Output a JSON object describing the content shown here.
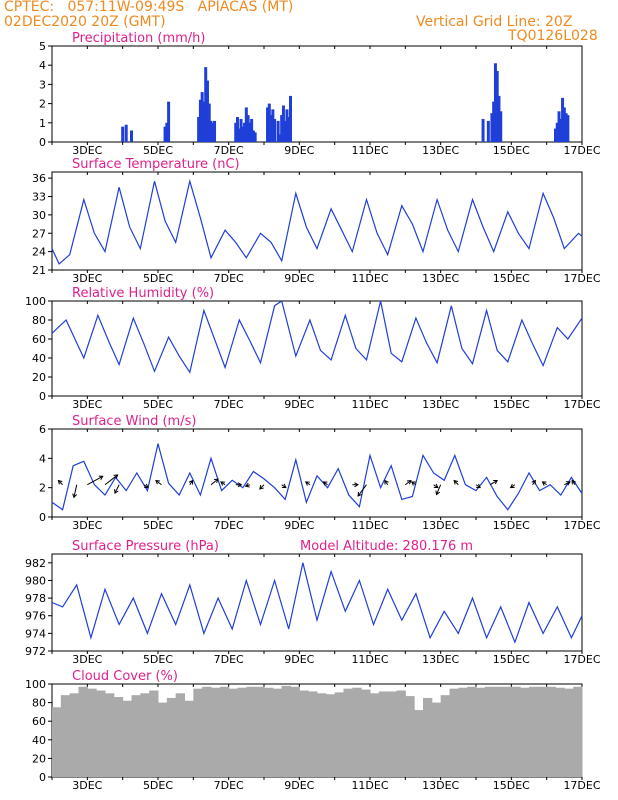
{
  "header": {
    "line1": "CPTEC:   057:11W-09:49S   APIACAS (MT)",
    "line2": "02DEC2020 20Z (GMT)",
    "vgrid": "Vertical Grid Line: 20Z",
    "code": "TQ0126L028"
  },
  "colors": {
    "header": "#ee8a1f",
    "title": "#e0208c",
    "series": "#1f3fd8",
    "cloud": "#aaaaaa"
  },
  "chart_data": [
    {
      "type": "bar",
      "title": "Precipitation (mm/h)",
      "ylim": [
        0,
        5
      ],
      "yticks": [
        0,
        1,
        2,
        3,
        4,
        5
      ],
      "xticks": [
        "3DEC",
        "5DEC",
        "7DEC",
        "9DEC",
        "11DEC",
        "13DEC",
        "15DEC",
        "17DEC"
      ],
      "x": [
        4.0,
        4.1,
        4.25,
        5.2,
        5.25,
        5.3,
        6.15,
        6.2,
        6.25,
        6.3,
        6.35,
        6.4,
        6.45,
        6.5,
        6.55,
        6.6,
        7.2,
        7.25,
        7.3,
        7.35,
        7.4,
        7.45,
        7.5,
        7.55,
        7.6,
        7.65,
        7.7,
        7.75,
        8.1,
        8.15,
        8.2,
        8.25,
        8.3,
        8.4,
        8.45,
        8.5,
        8.55,
        8.6,
        8.65,
        8.7,
        8.75,
        14.2,
        14.35,
        14.45,
        14.5,
        14.55,
        14.6,
        14.65,
        14.7,
        16.25,
        16.3,
        16.35,
        16.4,
        16.45,
        16.5,
        16.55,
        16.6
      ],
      "values": [
        0.8,
        0.9,
        0.6,
        0.8,
        1.0,
        2.1,
        1.3,
        2.2,
        2.6,
        2.1,
        3.9,
        3.2,
        2.0,
        1.1,
        1.0,
        1.1,
        1.0,
        1.3,
        0.7,
        1.2,
        0.8,
        1.0,
        1.8,
        1.4,
        1.0,
        1.2,
        0.6,
        0.5,
        1.8,
        2.0,
        1.4,
        1.7,
        1.2,
        1.1,
        0.4,
        1.4,
        1.9,
        1.1,
        1.7,
        1.3,
        2.4,
        1.2,
        1.1,
        1.5,
        2.1,
        4.1,
        3.7,
        2.4,
        1.6,
        0.7,
        1.0,
        1.6,
        1.2,
        2.3,
        1.8,
        1.5,
        1.4
      ]
    },
    {
      "type": "line",
      "title": "Surface Temperature (nC)",
      "ylim": [
        21,
        37
      ],
      "yticks": [
        21,
        24,
        27,
        30,
        33,
        36
      ],
      "xticks": [
        "3DEC",
        "5DEC",
        "7DEC",
        "9DEC",
        "11DEC",
        "13DEC",
        "15DEC",
        "17DEC"
      ],
      "x": [
        2.0,
        2.2,
        2.5,
        2.9,
        3.2,
        3.5,
        3.9,
        4.2,
        4.5,
        4.9,
        5.2,
        5.5,
        5.9,
        6.2,
        6.5,
        6.9,
        7.2,
        7.5,
        7.9,
        8.2,
        8.5,
        8.9,
        9.2,
        9.5,
        9.9,
        10.2,
        10.5,
        10.9,
        11.2,
        11.5,
        11.9,
        12.2,
        12.5,
        12.9,
        13.2,
        13.5,
        13.9,
        14.2,
        14.5,
        14.9,
        15.2,
        15.5,
        15.9,
        16.2,
        16.5,
        16.9,
        17.0
      ],
      "values": [
        24.5,
        22.0,
        23.5,
        32.5,
        27.0,
        24.0,
        34.5,
        28.0,
        24.5,
        35.5,
        29.0,
        25.5,
        35.5,
        29.5,
        23.0,
        27.5,
        25.5,
        23.0,
        27.0,
        25.5,
        22.5,
        33.5,
        28.0,
        24.5,
        31.0,
        27.5,
        24.0,
        32.5,
        27.0,
        23.5,
        31.5,
        28.5,
        24.0,
        32.5,
        27.5,
        24.0,
        32.5,
        28.0,
        24.0,
        30.5,
        27.0,
        24.5,
        33.5,
        29.5,
        24.5,
        27.0,
        26.5
      ]
    },
    {
      "type": "line",
      "title": "Relative Humidity (%)",
      "ylim": [
        0,
        100
      ],
      "yticks": [
        0,
        20,
        40,
        60,
        80,
        100
      ],
      "xticks": [
        "3DEC",
        "5DEC",
        "7DEC",
        "9DEC",
        "11DEC",
        "13DEC",
        "15DEC",
        "17DEC"
      ],
      "x": [
        2.0,
        2.4,
        2.9,
        3.3,
        3.6,
        3.9,
        4.3,
        4.6,
        4.9,
        5.3,
        5.6,
        5.9,
        6.3,
        6.6,
        6.9,
        7.3,
        7.6,
        7.9,
        8.3,
        8.5,
        8.9,
        9.3,
        9.6,
        9.9,
        10.3,
        10.6,
        10.9,
        11.3,
        11.6,
        11.9,
        12.3,
        12.6,
        12.9,
        13.3,
        13.6,
        13.9,
        14.3,
        14.6,
        14.9,
        15.3,
        15.6,
        15.9,
        16.3,
        16.6,
        17.0
      ],
      "values": [
        66,
        80,
        40,
        85,
        58,
        33,
        82,
        55,
        26,
        62,
        42,
        25,
        90,
        60,
        30,
        80,
        58,
        35,
        95,
        100,
        42,
        80,
        48,
        38,
        85,
        50,
        38,
        100,
        45,
        36,
        82,
        56,
        35,
        95,
        50,
        34,
        90,
        48,
        36,
        80,
        55,
        32,
        72,
        60,
        82
      ]
    },
    {
      "type": "line",
      "title": "Surface Wind (m/s)",
      "ylim": [
        0,
        6
      ],
      "yticks": [
        0,
        2,
        4,
        6
      ],
      "xticks": [
        "3DEC",
        "5DEC",
        "7DEC",
        "9DEC",
        "11DEC",
        "13DEC",
        "15DEC",
        "17DEC"
      ],
      "x": [
        2.0,
        2.3,
        2.6,
        2.9,
        3.2,
        3.5,
        3.8,
        4.1,
        4.4,
        4.7,
        5.0,
        5.3,
        5.6,
        5.9,
        6.2,
        6.5,
        6.8,
        7.1,
        7.4,
        7.7,
        8.0,
        8.3,
        8.6,
        8.9,
        9.2,
        9.5,
        9.8,
        10.1,
        10.4,
        10.7,
        11.0,
        11.3,
        11.6,
        11.9,
        12.2,
        12.5,
        12.8,
        13.1,
        13.4,
        13.7,
        14.0,
        14.3,
        14.6,
        14.9,
        15.2,
        15.5,
        15.8,
        16.1,
        16.4,
        16.7,
        17.0
      ],
      "values": [
        1.0,
        0.5,
        3.5,
        3.8,
        2.2,
        1.5,
        2.7,
        1.8,
        3.0,
        1.8,
        5.0,
        2.3,
        1.5,
        3.0,
        1.5,
        4.0,
        1.8,
        2.5,
        2.0,
        3.1,
        2.6,
        2.0,
        1.2,
        3.9,
        1.0,
        2.8,
        2.0,
        3.3,
        1.5,
        0.7,
        4.2,
        2.0,
        3.5,
        1.2,
        1.4,
        4.2,
        3.0,
        2.5,
        4.2,
        2.2,
        1.8,
        2.7,
        1.4,
        0.5,
        1.6,
        3.0,
        1.8,
        2.2,
        1.5,
        2.7,
        1.6
      ],
      "vectors": [
        {
          "x": 2.3,
          "u": -0.3,
          "v": 0.3
        },
        {
          "x": 2.7,
          "u": -0.2,
          "v": -0.9
        },
        {
          "x": 3.0,
          "u": 1.1,
          "v": 0.6
        },
        {
          "x": 3.5,
          "u": 0.9,
          "v": 0.7
        },
        {
          "x": 3.9,
          "u": -0.3,
          "v": -0.6
        },
        {
          "x": 4.6,
          "u": 0.3,
          "v": -0.2
        },
        {
          "x": 5.1,
          "u": -0.4,
          "v": 0.3
        },
        {
          "x": 5.9,
          "u": 0.2,
          "v": 0.3
        },
        {
          "x": 6.5,
          "u": 0.5,
          "v": 0.4
        },
        {
          "x": 6.9,
          "u": -0.3,
          "v": 0.2
        },
        {
          "x": 7.2,
          "u": 0.4,
          "v": 0.0
        },
        {
          "x": 7.6,
          "u": -0.3,
          "v": -0.1
        },
        {
          "x": 8.0,
          "u": -0.3,
          "v": -0.3
        },
        {
          "x": 8.5,
          "u": 0.3,
          "v": -0.2
        },
        {
          "x": 9.3,
          "u": -0.3,
          "v": 0.2
        },
        {
          "x": 9.8,
          "u": -0.3,
          "v": 0.2
        },
        {
          "x": 10.5,
          "u": 0.4,
          "v": 0.0
        },
        {
          "x": 10.9,
          "u": -0.6,
          "v": -0.8
        },
        {
          "x": 11.5,
          "u": -0.2,
          "v": 0.3
        },
        {
          "x": 12.0,
          "u": 0.4,
          "v": 0.3
        },
        {
          "x": 12.3,
          "u": -0.3,
          "v": 0.2
        },
        {
          "x": 12.8,
          "u": 0.3,
          "v": -0.2
        },
        {
          "x": 13.0,
          "u": -0.3,
          "v": -0.7
        },
        {
          "x": 13.5,
          "u": -0.3,
          "v": 0.3
        },
        {
          "x": 14.0,
          "u": 0.3,
          "v": -0.2
        },
        {
          "x": 14.4,
          "u": 0.5,
          "v": 0.3
        },
        {
          "x": 15.1,
          "u": -0.3,
          "v": -0.2
        },
        {
          "x": 15.6,
          "u": 0.2,
          "v": 0.3
        },
        {
          "x": 16.0,
          "u": -0.3,
          "v": 0.2
        },
        {
          "x": 16.5,
          "u": 0.4,
          "v": 0.2
        },
        {
          "x": 16.8,
          "u": -0.2,
          "v": 0.3
        }
      ]
    },
    {
      "type": "line",
      "title": "Surface Pressure (hPa)",
      "subtitle": "Model Altitude: 280.176 m",
      "ylim": [
        972,
        983
      ],
      "yticks": [
        972,
        974,
        976,
        978,
        980,
        982
      ],
      "xticks": [
        "3DEC",
        "5DEC",
        "7DEC",
        "9DEC",
        "11DEC",
        "13DEC",
        "15DEC",
        "17DEC"
      ],
      "x": [
        2.0,
        2.3,
        2.7,
        3.1,
        3.5,
        3.9,
        4.3,
        4.7,
        5.1,
        5.5,
        5.9,
        6.3,
        6.7,
        7.1,
        7.5,
        7.9,
        8.3,
        8.7,
        9.1,
        9.5,
        9.9,
        10.3,
        10.7,
        11.1,
        11.5,
        11.9,
        12.3,
        12.7,
        13.1,
        13.5,
        13.9,
        14.3,
        14.7,
        15.1,
        15.5,
        15.9,
        16.3,
        16.7,
        17.0
      ],
      "values": [
        977.5,
        977.0,
        979.5,
        973.5,
        979.0,
        975.0,
        978.0,
        974.0,
        978.5,
        975.0,
        979.5,
        974.0,
        978.0,
        974.5,
        980.0,
        975.0,
        980.0,
        974.5,
        982.0,
        975.5,
        981.0,
        976.5,
        980.0,
        975.0,
        979.0,
        975.5,
        978.5,
        973.5,
        976.5,
        974.0,
        978.0,
        973.5,
        977.0,
        973.0,
        977.5,
        974.0,
        977.0,
        973.5,
        976.0
      ]
    },
    {
      "type": "bar",
      "title": "Cloud Cover (%)",
      "ylim": [
        0,
        100
      ],
      "yticks": [
        0,
        20,
        40,
        60,
        80,
        100
      ],
      "xticks": [
        "3DEC",
        "5DEC",
        "7DEC",
        "9DEC",
        "11DEC",
        "13DEC",
        "15DEC",
        "17DEC"
      ],
      "x": [
        2.0,
        2.25,
        2.5,
        2.75,
        3.0,
        3.25,
        3.5,
        3.75,
        4.0,
        4.25,
        4.5,
        4.75,
        5.0,
        5.25,
        5.5,
        5.75,
        6.0,
        6.25,
        6.5,
        6.75,
        7.0,
        7.25,
        7.5,
        7.75,
        8.0,
        8.25,
        8.5,
        8.75,
        9.0,
        9.25,
        9.5,
        9.75,
        10.0,
        10.25,
        10.5,
        10.75,
        11.0,
        11.25,
        11.5,
        11.75,
        12.0,
        12.25,
        12.5,
        12.75,
        13.0,
        13.25,
        13.5,
        13.75,
        14.0,
        14.25,
        14.5,
        14.75,
        15.0,
        15.25,
        15.5,
        15.75,
        16.0,
        16.25,
        16.5,
        16.75
      ],
      "values": [
        75,
        88,
        90,
        97,
        95,
        93,
        90,
        86,
        82,
        88,
        90,
        93,
        80,
        85,
        90,
        82,
        95,
        97,
        96,
        97,
        95,
        96,
        97,
        97,
        96,
        95,
        98,
        97,
        93,
        92,
        90,
        89,
        91,
        95,
        96,
        94,
        90,
        92,
        92,
        93,
        87,
        72,
        85,
        80,
        88,
        95,
        96,
        97,
        96,
        97,
        97,
        97,
        97,
        96,
        97,
        97,
        97,
        96,
        95,
        97
      ]
    }
  ]
}
